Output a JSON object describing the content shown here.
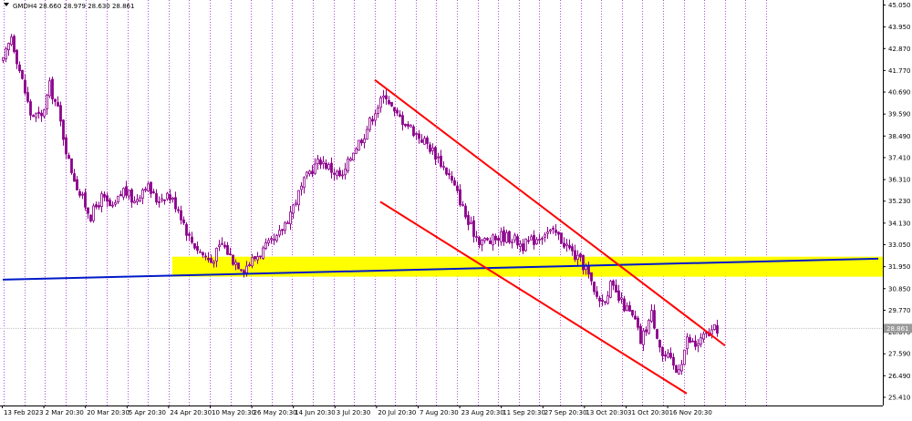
{
  "chart_data": {
    "type": "candlestick",
    "symbol_line": {
      "symbol": "GMDH4",
      "open": "28.660",
      "high": "28.979",
      "low": "28.630",
      "close": "28.861"
    },
    "current_price": 28.861,
    "current_price_label": "28.861",
    "y_ticks": [
      25.41,
      26.49,
      27.59,
      28.67,
      29.77,
      30.85,
      31.95,
      33.05,
      34.13,
      35.23,
      36.31,
      37.41,
      38.49,
      39.59,
      40.69,
      41.77,
      42.87,
      43.95,
      45.05
    ],
    "y_tick_labels": [
      "25.410",
      "26.490",
      "27.590",
      "28.670",
      "29.770",
      "30.850",
      "31.950",
      "33.050",
      "34.130",
      "35.230",
      "36.310",
      "37.410",
      "38.490",
      "39.590",
      "40.690",
      "41.770",
      "42.870",
      "43.950",
      "45.050"
    ],
    "ylim": [
      25.0,
      45.3
    ],
    "x_tick_labels": [
      "13 Feb 2023",
      "2 Mar 20:30",
      "20 Mar 20:30",
      "5 Apr 20:30",
      "24 Apr 20:30",
      "10 May 20:30",
      "26 May 20:30",
      "14 Jun 20:30",
      "3 Jul 20:30",
      "20 Jul 20:30",
      "7 Aug 20:30",
      "23 Aug 20:30",
      "11 Sep 20:30",
      "27 Sep 20:30",
      "13 Oct 20:30",
      "31 Oct 20:30",
      "16 Nov 20:30"
    ],
    "bar_count": 244,
    "price_path": [
      [
        0,
        42.2
      ],
      [
        3,
        43.5
      ],
      [
        6,
        41.8
      ],
      [
        10,
        39.6
      ],
      [
        14,
        39.4
      ],
      [
        17,
        41.0
      ],
      [
        20,
        39.8
      ],
      [
        24,
        37.2
      ],
      [
        28,
        35.6
      ],
      [
        32,
        34.5
      ],
      [
        36,
        35.4
      ],
      [
        40,
        34.8
      ],
      [
        44,
        35.8
      ],
      [
        48,
        35.2
      ],
      [
        52,
        36.1
      ],
      [
        56,
        35.3
      ],
      [
        60,
        35.6
      ],
      [
        64,
        34.9
      ],
      [
        68,
        33.4
      ],
      [
        72,
        32.7
      ],
      [
        76,
        32.2
      ],
      [
        80,
        33.1
      ],
      [
        84,
        32.3
      ],
      [
        88,
        31.9
      ],
      [
        92,
        32.4
      ],
      [
        96,
        32.9
      ],
      [
        100,
        33.3
      ],
      [
        104,
        34.4
      ],
      [
        108,
        35.6
      ],
      [
        112,
        36.7
      ],
      [
        116,
        37.3
      ],
      [
        120,
        36.8
      ],
      [
        124,
        36.4
      ],
      [
        128,
        37.8
      ],
      [
        132,
        38.6
      ],
      [
        136,
        39.8
      ],
      [
        140,
        40.6
      ],
      [
        143,
        39.6
      ],
      [
        147,
        39.2
      ],
      [
        151,
        38.6
      ],
      [
        155,
        38.1
      ],
      [
        159,
        37.4
      ],
      [
        163,
        36.5
      ],
      [
        167,
        35.3
      ],
      [
        170,
        34.1
      ],
      [
        174,
        33.3
      ],
      [
        178,
        33.2
      ],
      [
        182,
        33.5
      ],
      [
        186,
        33.4
      ],
      [
        190,
        33.0
      ],
      [
        194,
        33.3
      ],
      [
        198,
        33.7
      ],
      [
        202,
        33.6
      ],
      [
        206,
        33.0
      ],
      [
        210,
        32.3
      ],
      [
        213,
        31.9
      ],
      [
        216,
        30.6
      ],
      [
        219,
        30.2
      ],
      [
        222,
        31.0
      ],
      [
        225,
        30.3
      ],
      [
        228,
        29.8
      ],
      [
        231,
        29.2
      ],
      [
        233,
        28.2
      ],
      [
        235,
        28.9
      ],
      [
        237,
        29.6
      ],
      [
        239,
        28.6
      ],
      [
        241,
        27.5
      ],
      [
        243,
        27.4
      ],
      [
        246,
        26.7
      ],
      [
        248,
        27.3
      ],
      [
        250,
        28.3
      ],
      [
        253,
        28.0
      ],
      [
        256,
        28.4
      ],
      [
        259,
        28.7
      ],
      [
        261,
        28.86
      ]
    ],
    "trend_lines": [
      {
        "name": "support-line",
        "color": "#0019c8",
        "start": [
          0,
          31.3
        ],
        "end": [
          320,
          32.35
        ]
      },
      {
        "name": "channel-upper",
        "color": "#ff0000",
        "start": [
          136,
          41.3
        ],
        "end": [
          264,
          28.0
        ]
      },
      {
        "name": "channel-lower",
        "color": "#ff0000",
        "start": [
          138,
          35.2
        ],
        "end": [
          250,
          25.6
        ]
      }
    ],
    "zone": {
      "name": "support-zone",
      "color": "#ffff00",
      "bar_start": 62,
      "price_low": 31.45,
      "price_high": 32.45
    },
    "colors": {
      "candle": "#8b008b",
      "grid": "#9400d3",
      "price_line": "#c0c0c0",
      "label_bg": "#9a9a9a"
    }
  }
}
